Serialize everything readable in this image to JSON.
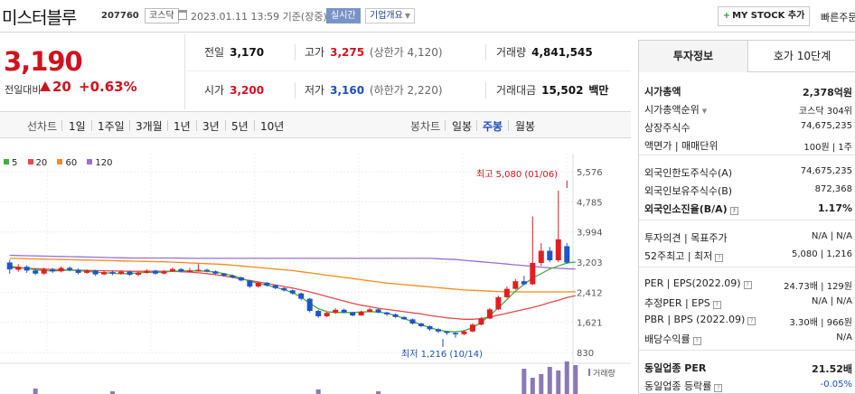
{
  "header": {
    "stock_name": "미스터블루",
    "code": "207760",
    "market": "코스닥",
    "datetime": "2023.01.11 13:59 기준(장중)",
    "realtime_label": "실시간",
    "company_overview": "기업개요",
    "mystock_label": "MY STOCK 추가",
    "quick_order": "빠른주문"
  },
  "price": {
    "current": "3,190",
    "change_label": "전일대비",
    "change": "20",
    "change_pct": "+0.63%"
  },
  "stats": {
    "prev_label": "전일",
    "prev": "3,170",
    "high_label": "고가",
    "high": "3,275",
    "upper_limit": "(상한가 4,120)",
    "volume_label": "거래량",
    "volume": "4,841,545",
    "open_label": "시가",
    "open": "3,200",
    "low_label": "저가",
    "low": "3,160",
    "lower_limit": "(하한가 2,220)",
    "amount_label": "거래대금",
    "amount": "15,502",
    "amount_unit": "백만"
  },
  "tabs": {
    "line_chart": "선차트",
    "periods": [
      "1일",
      "1주일",
      "3개월",
      "1년",
      "3년",
      "5년",
      "10년"
    ],
    "candle_chart": "봉차트",
    "candle_periods": [
      "일봉",
      "주봉",
      "월봉"
    ],
    "active_candle": "주봉"
  },
  "legend": [
    {
      "label": "5",
      "color": "#3fae3f"
    },
    {
      "label": "20",
      "color": "#e04a4a"
    },
    {
      "label": "60",
      "color": "#f08c1c"
    },
    {
      "label": "120",
      "color": "#9a6fd0"
    }
  ],
  "chart_data": {
    "type": "candlestick",
    "y_ticks": [
      "5,576",
      "4,785",
      "3,994",
      "3,203",
      "2,412",
      "1,621",
      "830"
    ],
    "ylim": [
      830,
      5576
    ],
    "high_annotation": "최고 5,080 (01/06)",
    "low_annotation": "최저 1,216 (10/14)",
    "volume_label": "거래량",
    "candles": [
      {
        "o": 3190,
        "c": 3010,
        "h": 3260,
        "l": 2900
      },
      {
        "o": 3000,
        "c": 3080,
        "h": 3150,
        "l": 2950
      },
      {
        "o": 3080,
        "c": 2980,
        "h": 3120,
        "l": 2920
      },
      {
        "o": 2980,
        "c": 2900,
        "h": 3020,
        "l": 2860
      },
      {
        "o": 2900,
        "c": 3010,
        "h": 3060,
        "l": 2870
      },
      {
        "o": 3010,
        "c": 2960,
        "h": 3050,
        "l": 2920
      },
      {
        "o": 2960,
        "c": 3050,
        "h": 3090,
        "l": 2930
      },
      {
        "o": 3050,
        "c": 3000,
        "h": 3090,
        "l": 2960
      },
      {
        "o": 3000,
        "c": 2920,
        "h": 3040,
        "l": 2880
      },
      {
        "o": 2920,
        "c": 2980,
        "h": 3010,
        "l": 2890
      },
      {
        "o": 2980,
        "c": 2880,
        "h": 3000,
        "l": 2840
      },
      {
        "o": 2880,
        "c": 2940,
        "h": 2980,
        "l": 2860
      },
      {
        "o": 2940,
        "c": 2900,
        "h": 2970,
        "l": 2860
      },
      {
        "o": 2900,
        "c": 2950,
        "h": 2990,
        "l": 2870
      },
      {
        "o": 2950,
        "c": 2870,
        "h": 2980,
        "l": 2840
      },
      {
        "o": 2870,
        "c": 2920,
        "h": 2950,
        "l": 2830
      },
      {
        "o": 2920,
        "c": 2980,
        "h": 3010,
        "l": 2900
      },
      {
        "o": 2980,
        "c": 2900,
        "h": 3000,
        "l": 2870
      },
      {
        "o": 2900,
        "c": 2960,
        "h": 2990,
        "l": 2880
      },
      {
        "o": 2960,
        "c": 3020,
        "h": 3060,
        "l": 2940
      },
      {
        "o": 3020,
        "c": 2960,
        "h": 3040,
        "l": 2930
      },
      {
        "o": 2960,
        "c": 2980,
        "h": 3050,
        "l": 2940
      },
      {
        "o": 2980,
        "c": 3000,
        "h": 3150,
        "l": 2950
      },
      {
        "o": 3000,
        "c": 2960,
        "h": 3030,
        "l": 2930
      },
      {
        "o": 2960,
        "c": 2900,
        "h": 2980,
        "l": 2870
      },
      {
        "o": 2900,
        "c": 2850,
        "h": 2920,
        "l": 2820
      },
      {
        "o": 2850,
        "c": 2800,
        "h": 2870,
        "l": 2780
      },
      {
        "o": 2800,
        "c": 2720,
        "h": 2820,
        "l": 2700
      },
      {
        "o": 2720,
        "c": 2560,
        "h": 2740,
        "l": 2520
      },
      {
        "o": 2560,
        "c": 2660,
        "h": 2690,
        "l": 2530
      },
      {
        "o": 2660,
        "c": 2590,
        "h": 2680,
        "l": 2560
      },
      {
        "o": 2590,
        "c": 2520,
        "h": 2610,
        "l": 2490
      },
      {
        "o": 2520,
        "c": 2460,
        "h": 2540,
        "l": 2430
      },
      {
        "o": 2460,
        "c": 2380,
        "h": 2480,
        "l": 2350
      },
      {
        "o": 2380,
        "c": 2240,
        "h": 2400,
        "l": 2200
      },
      {
        "o": 2240,
        "c": 1920,
        "h": 2260,
        "l": 1880
      },
      {
        "o": 1920,
        "c": 1780,
        "h": 1950,
        "l": 1740
      },
      {
        "o": 1780,
        "c": 1870,
        "h": 1900,
        "l": 1750
      },
      {
        "o": 1870,
        "c": 1950,
        "h": 1990,
        "l": 1840
      },
      {
        "o": 1950,
        "c": 1880,
        "h": 1980,
        "l": 1860
      },
      {
        "o": 1880,
        "c": 1800,
        "h": 1900,
        "l": 1780
      },
      {
        "o": 1800,
        "c": 1900,
        "h": 1930,
        "l": 1790
      },
      {
        "o": 1900,
        "c": 1960,
        "h": 2000,
        "l": 1880
      },
      {
        "o": 1960,
        "c": 1880,
        "h": 1990,
        "l": 1860
      },
      {
        "o": 1880,
        "c": 1830,
        "h": 1900,
        "l": 1790
      },
      {
        "o": 1830,
        "c": 1760,
        "h": 1850,
        "l": 1740
      },
      {
        "o": 1760,
        "c": 1700,
        "h": 1780,
        "l": 1690
      },
      {
        "o": 1700,
        "c": 1590,
        "h": 1720,
        "l": 1560
      },
      {
        "o": 1590,
        "c": 1520,
        "h": 1610,
        "l": 1490
      },
      {
        "o": 1520,
        "c": 1440,
        "h": 1540,
        "l": 1400
      },
      {
        "o": 1440,
        "c": 1380,
        "h": 1460,
        "l": 1340
      },
      {
        "o": 1380,
        "c": 1340,
        "h": 1400,
        "l": 1290
      },
      {
        "o": 1340,
        "c": 1310,
        "h": 1360,
        "l": 1216
      },
      {
        "o": 1310,
        "c": 1380,
        "h": 1420,
        "l": 1280
      },
      {
        "o": 1380,
        "c": 1560,
        "h": 1600,
        "l": 1360
      },
      {
        "o": 1560,
        "c": 1720,
        "h": 1760,
        "l": 1540
      },
      {
        "o": 1720,
        "c": 1960,
        "h": 2000,
        "l": 1700
      },
      {
        "o": 1960,
        "c": 2280,
        "h": 2320,
        "l": 1940
      },
      {
        "o": 2280,
        "c": 2500,
        "h": 2560,
        "l": 2260
      },
      {
        "o": 2500,
        "c": 2700,
        "h": 2760,
        "l": 2480
      },
      {
        "o": 2700,
        "c": 2620,
        "h": 2840,
        "l": 2600
      },
      {
        "o": 2620,
        "c": 3180,
        "h": 4400,
        "l": 2600
      },
      {
        "o": 3180,
        "c": 3500,
        "h": 3700,
        "l": 3100
      },
      {
        "o": 3500,
        "c": 3250,
        "h": 3600,
        "l": 3200
      },
      {
        "o": 3250,
        "c": 3800,
        "h": 5080,
        "l": 3200
      },
      {
        "o": 3620,
        "c": 3190,
        "h": 3700,
        "l": 3160
      }
    ],
    "volume": [
      {
        "i": 3,
        "v": 6
      },
      {
        "i": 12,
        "v": 3
      },
      {
        "i": 36,
        "v": 5
      },
      {
        "i": 43,
        "v": 3
      },
      {
        "i": 60,
        "v": 28
      },
      {
        "i": 61,
        "v": 18
      },
      {
        "i": 62,
        "v": 22
      },
      {
        "i": 63,
        "v": 30
      },
      {
        "i": 64,
        "v": 26
      },
      {
        "i": 65,
        "v": 36
      },
      {
        "i": 66,
        "v": 32
      }
    ],
    "ma": {
      "5": [
        3100,
        3060,
        3040,
        3000,
        2980,
        2970,
        2980,
        2990,
        2980,
        2960,
        2940,
        2920,
        2910,
        2900,
        2900,
        2920,
        2930,
        2930,
        2940,
        2960,
        2970,
        2970,
        2970,
        2960,
        2940,
        2900,
        2850,
        2780,
        2700,
        2640,
        2590,
        2540,
        2480,
        2400,
        2280,
        2120,
        1980,
        1900,
        1880,
        1880,
        1880,
        1890,
        1900,
        1890,
        1860,
        1800,
        1720,
        1640,
        1560,
        1480,
        1420,
        1380,
        1370,
        1400,
        1480,
        1620,
        1800,
        2000,
        2220,
        2440,
        2620,
        2780,
        2900,
        3020,
        3100,
        3180,
        3203
      ],
      "20": [
        3060,
        3050,
        3040,
        3030,
        3020,
        3010,
        3000,
        2995,
        2990,
        2985,
        2980,
        2975,
        2970,
        2965,
        2960,
        2960,
        2960,
        2960,
        2960,
        2960,
        2950,
        2940,
        2920,
        2900,
        2870,
        2840,
        2800,
        2760,
        2720,
        2680,
        2640,
        2600,
        2560,
        2520,
        2470,
        2420,
        2360,
        2300,
        2240,
        2180,
        2120,
        2070,
        2030,
        1990,
        1960,
        1930,
        1900,
        1870,
        1840,
        1800,
        1770,
        1740,
        1720,
        1700,
        1700,
        1720,
        1760,
        1810,
        1860,
        1910,
        1960,
        2010,
        2070,
        2140,
        2200,
        2270,
        2320
      ],
      "60": [
        3300,
        3295,
        3290,
        3285,
        3280,
        3275,
        3270,
        3265,
        3260,
        3255,
        3250,
        3245,
        3240,
        3235,
        3230,
        3225,
        3220,
        3215,
        3210,
        3200,
        3190,
        3180,
        3170,
        3160,
        3150,
        3140,
        3120,
        3100,
        3080,
        3060,
        3040,
        3020,
        3000,
        2980,
        2950,
        2920,
        2890,
        2860,
        2830,
        2800,
        2770,
        2740,
        2710,
        2680,
        2650,
        2630,
        2610,
        2590,
        2570,
        2550,
        2530,
        2510,
        2490,
        2470,
        2460,
        2450,
        2440,
        2430,
        2420,
        2420,
        2420,
        2420,
        2420,
        2420,
        2420,
        2420,
        2425
      ],
      "120": [
        3380,
        3375,
        3370,
        3365,
        3360,
        3355,
        3350,
        3345,
        3340,
        3335,
        3330,
        3325,
        3320,
        3315,
        3310,
        3310,
        3310,
        3310,
        3310,
        3310,
        3305,
        3300,
        3300,
        3300,
        3300,
        3300,
        3300,
        3300,
        3300,
        3300,
        3300,
        3300,
        3300,
        3300,
        3300,
        3300,
        3300,
        3300,
        3300,
        3300,
        3300,
        3300,
        3300,
        3300,
        3300,
        3300,
        3300,
        3300,
        3300,
        3300,
        3290,
        3280,
        3270,
        3250,
        3230,
        3210,
        3190,
        3170,
        3150,
        3130,
        3110,
        3090,
        3070,
        3050,
        3040,
        3030,
        3020
      ]
    }
  },
  "right_panel": {
    "tab_active": "투자정보",
    "tab_other": "호가 10단계",
    "items": [
      {
        "k": "시가총액",
        "v": "2,378억원",
        "bk": true,
        "bv": true
      },
      {
        "k": "시가총액순위",
        "v": "코스닥 304위",
        "dd": true
      },
      {
        "k": "상장주식수",
        "v": "74,675,235"
      },
      {
        "k": "액면가 | 매매단위",
        "v": "100원 | 1주"
      },
      {
        "k": "외국인한도주식수(A)",
        "v": "74,675,235"
      },
      {
        "k": "외국인보유주식수(B)",
        "v": "872,368"
      },
      {
        "k": "외국인소진율(B/A)",
        "v": "1.17%",
        "bk": true,
        "bv": true,
        "q": true
      },
      {
        "k": "투자의견 | 목표주가",
        "v": "N/A | N/A"
      },
      {
        "k": "52주최고 | 최저",
        "v": "5,080 | 1,216",
        "q": true
      },
      {
        "k": "PER | EPS(2022.09)",
        "v": "24.73배 | 129원",
        "q": true
      },
      {
        "k": "추정PER | EPS",
        "v": "N/A | N/A",
        "q": true
      },
      {
        "k": "PBR | BPS (2022.09)",
        "v": "3.30배 | 966원",
        "q": true
      },
      {
        "k": "배당수익률",
        "v": "N/A",
        "q": true
      },
      {
        "k": "동일업종 PER",
        "v": "21.52배",
        "bk": true,
        "bv": true
      },
      {
        "k": "동일업종 등락률",
        "v": "-0.05%",
        "q": true,
        "blue": true
      }
    ]
  }
}
